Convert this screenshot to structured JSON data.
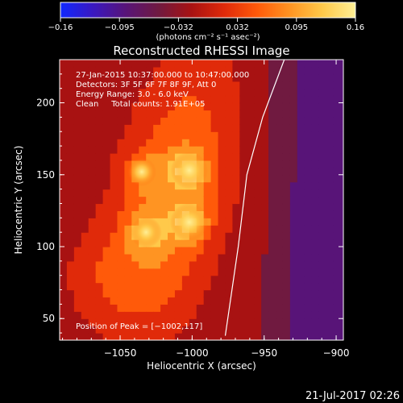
{
  "chart_data": {
    "type": "heatmap",
    "title": "Reconstructed RHESSI Image",
    "xlabel": "Heliocentric X (arcsec)",
    "ylabel": "Heliocentric Y (arcsec)",
    "xlim": [
      -1092,
      -895
    ],
    "ylim": [
      35,
      230
    ],
    "x_ticks": [
      -1050,
      -1000,
      -950,
      -900
    ],
    "x_tick_labels": [
      "−1050",
      "−1000",
      "−950",
      "−900"
    ],
    "y_ticks": [
      50,
      100,
      150,
      200
    ],
    "y_tick_labels": [
      "50",
      "100",
      "150",
      "200"
    ],
    "colorbar": {
      "range": [
        -0.16,
        0.16
      ],
      "tick_labels": [
        "−0.16",
        "−0.095",
        "−0.032",
        "0.032",
        "0.095",
        "0.16"
      ],
      "unit_label": "(photons cm⁻² s⁻¹ asec⁻²)",
      "colormap": [
        "#1028ff",
        "#3a18c0",
        "#581478",
        "#701a40",
        "#a81212",
        "#e02a0a",
        "#ff5a0a",
        "#ff9422",
        "#ffc94a",
        "#ffef95"
      ]
    },
    "annotations": [
      "27-Jan-2015 10:37:00.000 to 10:47:00.000",
      "Detectors: 3F 5F 6F 7F 8F 9F, Att 0",
      "Energy Range: 3.0 - 6.0 keV",
      "Clean     Total counts: 1.91E+05"
    ],
    "peak_text": "Position of Peak = [−1002,117]",
    "peak": [
      -1002,
      117
    ],
    "sources": [
      {
        "x": -1002,
        "y": 117,
        "value": 0.16
      },
      {
        "x": -1002,
        "y": 153,
        "value": 0.155
      },
      {
        "x": -1032,
        "y": 110,
        "value": 0.13
      },
      {
        "x": -1035,
        "y": 152,
        "value": 0.12
      }
    ],
    "limb_line": [
      {
        "x": -977,
        "y": 38
      },
      {
        "x": -968,
        "y": 100
      },
      {
        "x": -962,
        "y": 150
      },
      {
        "x": -951,
        "y": 190
      },
      {
        "x": -936,
        "y": 230
      }
    ],
    "background_level": -0.03
  },
  "footer": {
    "timestamp": "21-Jul-2017 02:26"
  }
}
